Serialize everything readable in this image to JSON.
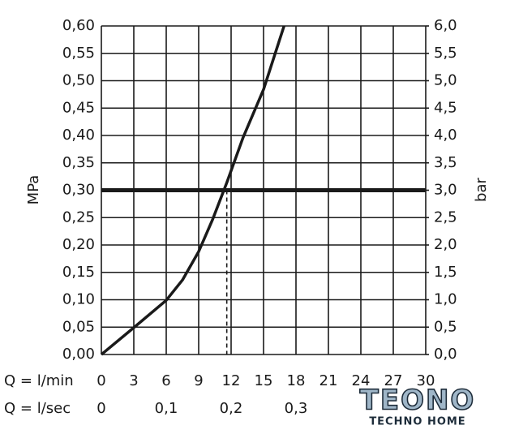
{
  "chart_data": {
    "type": "line",
    "y_label": "MPa",
    "y2_label": "bar",
    "x_row_label": "Q = l/min",
    "x2_row_label": "Q = l/sec",
    "x": [
      0,
      3,
      6,
      7.5,
      9,
      10.3,
      11.6,
      13.1,
      15,
      16.9
    ],
    "values": [
      0,
      0.049,
      0.099,
      0.136,
      0.188,
      0.247,
      0.314,
      0.396,
      0.484,
      0.6
    ],
    "color": "#1a1a1a",
    "xlim": [
      0,
      30
    ],
    "xticks": [
      0,
      3,
      6,
      9,
      12,
      15,
      18,
      21,
      24,
      27,
      30
    ],
    "x2lim": [
      0,
      0.5
    ],
    "x2ticks": [
      0,
      {
        "value": 0.1,
        "label": "0,1"
      },
      {
        "value": 0.2,
        "label": "0,2"
      },
      {
        "value": 0.3,
        "label": "0,3"
      }
    ],
    "ylim": [
      0,
      0.6
    ],
    "yticks": [
      {
        "value": 0,
        "label": "0,00"
      },
      {
        "value": 0.05,
        "label": "0,05"
      },
      {
        "value": 0.1,
        "label": "0,10"
      },
      {
        "value": 0.15,
        "label": "0,15"
      },
      {
        "value": 0.2,
        "label": "0,20"
      },
      {
        "value": 0.25,
        "label": "0,25"
      },
      {
        "value": 0.3,
        "label": "0,30"
      },
      {
        "value": 0.35,
        "label": "0,35"
      },
      {
        "value": 0.4,
        "label": "0,40"
      },
      {
        "value": 0.45,
        "label": "0,45"
      },
      {
        "value": 0.5,
        "label": "0,50"
      },
      {
        "value": 0.55,
        "label": "0,55"
      },
      {
        "value": 0.6,
        "label": "0,60"
      }
    ],
    "y2lim": [
      0,
      6
    ],
    "y2ticks": [
      {
        "value": 0,
        "label": "0,0"
      },
      {
        "value": 0.5,
        "label": "0,5"
      },
      {
        "value": 1,
        "label": "1,0"
      },
      {
        "value": 1.5,
        "label": "1,5"
      },
      {
        "value": 2,
        "label": "2,0"
      },
      {
        "value": 2.5,
        "label": "2,5"
      },
      {
        "value": 3,
        "label": "3,0"
      },
      {
        "value": 3.5,
        "label": "3,5"
      },
      {
        "value": 4,
        "label": "4,0"
      },
      {
        "value": 4.5,
        "label": "4,5"
      },
      {
        "value": 5,
        "label": "5,0"
      },
      {
        "value": 5.5,
        "label": "5,5"
      },
      {
        "value": 6,
        "label": "6,0"
      }
    ],
    "reference_y": 0.3,
    "reference_x": 11.6,
    "grid": true
  },
  "watermark": {
    "brand": "TEONO",
    "tagline": "TECHNO HOME"
  }
}
